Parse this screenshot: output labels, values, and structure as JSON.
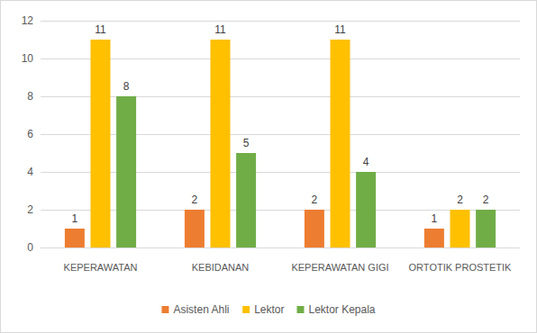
{
  "chart_data": {
    "type": "bar",
    "categories": [
      "KEPERAWATAN",
      "KEBIDANAN",
      "KEPERAWATAN GIGI",
      "ORTOTIK PROSTETIK"
    ],
    "series": [
      {
        "name": "Asisten Ahli",
        "color": "#ed7d31",
        "values": [
          1,
          2,
          2,
          1
        ]
      },
      {
        "name": "Lektor",
        "color": "#ffc000",
        "values": [
          11,
          11,
          11,
          2
        ]
      },
      {
        "name": "Lektor Kepala",
        "color": "#70ad47",
        "values": [
          8,
          5,
          4,
          2
        ]
      }
    ],
    "ylim": [
      0,
      12
    ],
    "yticks": [
      0,
      2,
      4,
      6,
      8,
      10,
      12
    ],
    "grid": true,
    "legend": "bottom",
    "data_labels": true
  }
}
